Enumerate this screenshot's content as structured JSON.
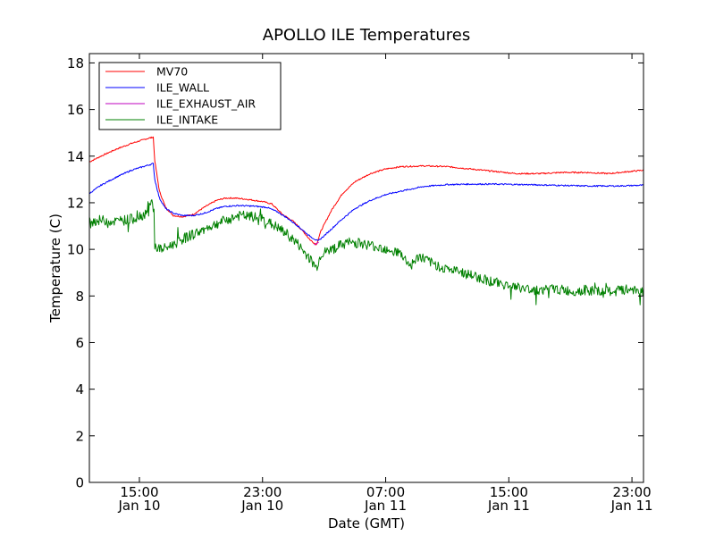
{
  "chart_data": {
    "type": "line",
    "title": "APOLLO ILE Temperatures",
    "xlabel": "Date (GMT)",
    "ylabel": "Temperature (C)",
    "x_unit": "hours since 2010-01-10 00:00 GMT",
    "xlim": [
      11.75,
      47.75
    ],
    "ylim": [
      0,
      18.4
    ],
    "yticks": [
      0,
      2,
      4,
      6,
      8,
      10,
      12,
      14,
      16,
      18
    ],
    "ytick_labels": [
      "0",
      "2",
      "4",
      "6",
      "8",
      "10",
      "12",
      "14",
      "16",
      "18"
    ],
    "xticks": [
      {
        "x": 15,
        "time": "15:00",
        "date": "Jan 10"
      },
      {
        "x": 23,
        "time": "23:00",
        "date": "Jan 10"
      },
      {
        "x": 31,
        "time": "07:00",
        "date": "Jan 11"
      },
      {
        "x": 39,
        "time": "15:00",
        "date": "Jan 11"
      },
      {
        "x": 47,
        "time": "23:00",
        "date": "Jan 11"
      }
    ],
    "legend_position": "top-left",
    "series": [
      {
        "name": "MV70",
        "color": "#ff0000",
        "noise": 0.03,
        "points": [
          [
            11.75,
            13.75
          ],
          [
            12.5,
            14.0
          ],
          [
            13.5,
            14.3
          ],
          [
            14.5,
            14.55
          ],
          [
            15.5,
            14.75
          ],
          [
            15.9,
            14.82
          ],
          [
            16.0,
            13.8
          ],
          [
            16.3,
            12.5
          ],
          [
            16.7,
            11.8
          ],
          [
            17.2,
            11.45
          ],
          [
            17.8,
            11.4
          ],
          [
            18.5,
            11.5
          ],
          [
            19.2,
            11.8
          ],
          [
            20.0,
            12.1
          ],
          [
            20.6,
            12.2
          ],
          [
            21.2,
            12.2
          ],
          [
            22.0,
            12.15
          ],
          [
            23.0,
            12.05
          ],
          [
            23.6,
            11.95
          ],
          [
            24.3,
            11.5
          ],
          [
            25.0,
            11.2
          ],
          [
            25.6,
            10.8
          ],
          [
            26.1,
            10.4
          ],
          [
            26.5,
            10.2
          ],
          [
            26.8,
            10.8
          ],
          [
            27.5,
            11.7
          ],
          [
            28.2,
            12.4
          ],
          [
            29.0,
            12.9
          ],
          [
            30.0,
            13.25
          ],
          [
            31.0,
            13.45
          ],
          [
            32.0,
            13.55
          ],
          [
            33.5,
            13.58
          ],
          [
            35.0,
            13.55
          ],
          [
            36.5,
            13.45
          ],
          [
            38.0,
            13.35
          ],
          [
            39.5,
            13.25
          ],
          [
            41.0,
            13.25
          ],
          [
            42.5,
            13.3
          ],
          [
            44.0,
            13.3
          ],
          [
            45.5,
            13.25
          ],
          [
            47.0,
            13.35
          ],
          [
            47.75,
            13.4
          ]
        ]
      },
      {
        "name": "ILE_WALL",
        "color": "#0000ff",
        "noise": 0.03,
        "points": [
          [
            11.75,
            12.4
          ],
          [
            12.5,
            12.75
          ],
          [
            13.5,
            13.1
          ],
          [
            14.5,
            13.4
          ],
          [
            15.5,
            13.6
          ],
          [
            15.9,
            13.68
          ],
          [
            16.0,
            13.0
          ],
          [
            16.3,
            12.2
          ],
          [
            16.7,
            11.75
          ],
          [
            17.2,
            11.55
          ],
          [
            17.8,
            11.45
          ],
          [
            18.5,
            11.45
          ],
          [
            19.2,
            11.55
          ],
          [
            20.0,
            11.75
          ],
          [
            20.6,
            11.85
          ],
          [
            21.5,
            11.88
          ],
          [
            22.5,
            11.85
          ],
          [
            23.3,
            11.8
          ],
          [
            24.0,
            11.6
          ],
          [
            24.7,
            11.3
          ],
          [
            25.3,
            11.0
          ],
          [
            26.0,
            10.6
          ],
          [
            26.6,
            10.35
          ],
          [
            27.2,
            10.7
          ],
          [
            28.0,
            11.2
          ],
          [
            29.0,
            11.75
          ],
          [
            30.0,
            12.1
          ],
          [
            31.0,
            12.35
          ],
          [
            32.0,
            12.5
          ],
          [
            33.5,
            12.7
          ],
          [
            35.0,
            12.78
          ],
          [
            36.5,
            12.8
          ],
          [
            38.0,
            12.8
          ],
          [
            40.0,
            12.78
          ],
          [
            42.0,
            12.75
          ],
          [
            44.0,
            12.72
          ],
          [
            46.0,
            12.72
          ],
          [
            47.75,
            12.75
          ]
        ]
      },
      {
        "name": "ILE_EXHAUST_AIR",
        "color": "#bf00bf",
        "noise": 0.0,
        "points": [
          [
            26.35,
            10.2
          ],
          [
            26.5,
            10.25
          ],
          [
            26.65,
            10.3
          ]
        ]
      },
      {
        "name": "ILE_INTAKE",
        "color": "#008000",
        "noise": 0.22,
        "points": [
          [
            11.75,
            11.2
          ],
          [
            12.5,
            11.25
          ],
          [
            13.5,
            11.2
          ],
          [
            14.5,
            11.3
          ],
          [
            15.3,
            11.5
          ],
          [
            15.6,
            11.7
          ],
          [
            15.85,
            12.1
          ],
          [
            15.95,
            11.6
          ],
          [
            16.0,
            10.1
          ],
          [
            16.5,
            10.0
          ],
          [
            17.0,
            10.15
          ],
          [
            18.0,
            10.5
          ],
          [
            19.0,
            10.8
          ],
          [
            20.0,
            11.1
          ],
          [
            20.8,
            11.3
          ],
          [
            21.5,
            11.45
          ],
          [
            22.3,
            11.4
          ],
          [
            23.0,
            11.3
          ],
          [
            23.8,
            11.0
          ],
          [
            24.5,
            10.7
          ],
          [
            25.2,
            10.3
          ],
          [
            25.8,
            9.8
          ],
          [
            26.3,
            9.4
          ],
          [
            26.5,
            9.2
          ],
          [
            26.8,
            9.8
          ],
          [
            27.5,
            10.0
          ],
          [
            28.5,
            10.3
          ],
          [
            29.5,
            10.25
          ],
          [
            30.5,
            10.1
          ],
          [
            31.3,
            10.0
          ],
          [
            32.0,
            9.8
          ],
          [
            32.6,
            9.3
          ],
          [
            33.2,
            9.7
          ],
          [
            34.0,
            9.4
          ],
          [
            35.0,
            9.15
          ],
          [
            36.0,
            9.0
          ],
          [
            37.0,
            8.8
          ],
          [
            38.0,
            8.6
          ],
          [
            39.0,
            8.45
          ],
          [
            40.0,
            8.3
          ],
          [
            41.0,
            8.25
          ],
          [
            42.0,
            8.3
          ],
          [
            43.0,
            8.2
          ],
          [
            44.0,
            8.25
          ],
          [
            45.0,
            8.15
          ],
          [
            46.0,
            8.2
          ],
          [
            47.0,
            8.3
          ],
          [
            47.75,
            8.2
          ]
        ]
      }
    ]
  }
}
